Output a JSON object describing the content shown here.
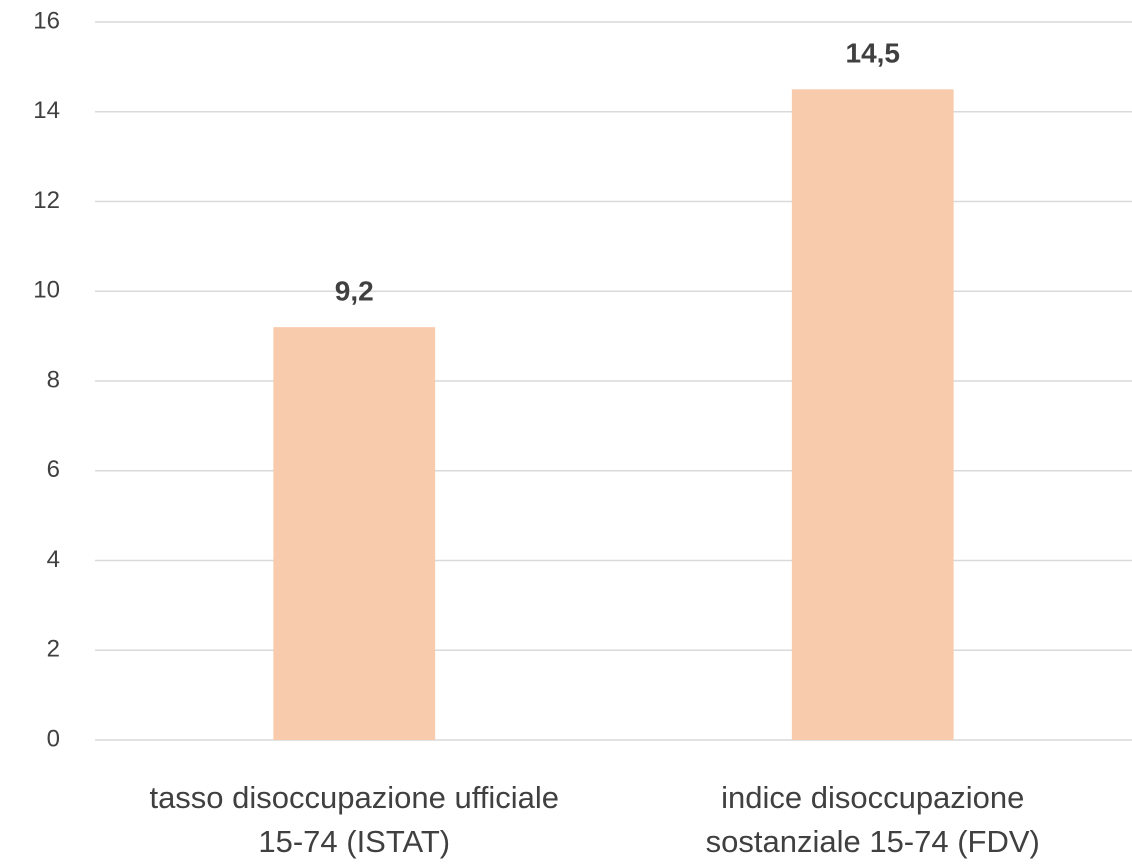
{
  "chart_data": {
    "type": "bar",
    "categories": [
      "tasso disoccupazione ufficiale\n15-74 (ISTAT)",
      "indice disoccupazione\nsostanziale 15-74 (FDV)"
    ],
    "values": [
      9.2,
      14.5
    ],
    "value_labels": [
      "9,2",
      "14,5"
    ],
    "color": "#f8cbad",
    "ylim": [
      0,
      16
    ],
    "yticks": [
      0,
      2,
      4,
      6,
      8,
      10,
      12,
      14,
      16
    ],
    "grid": true
  }
}
